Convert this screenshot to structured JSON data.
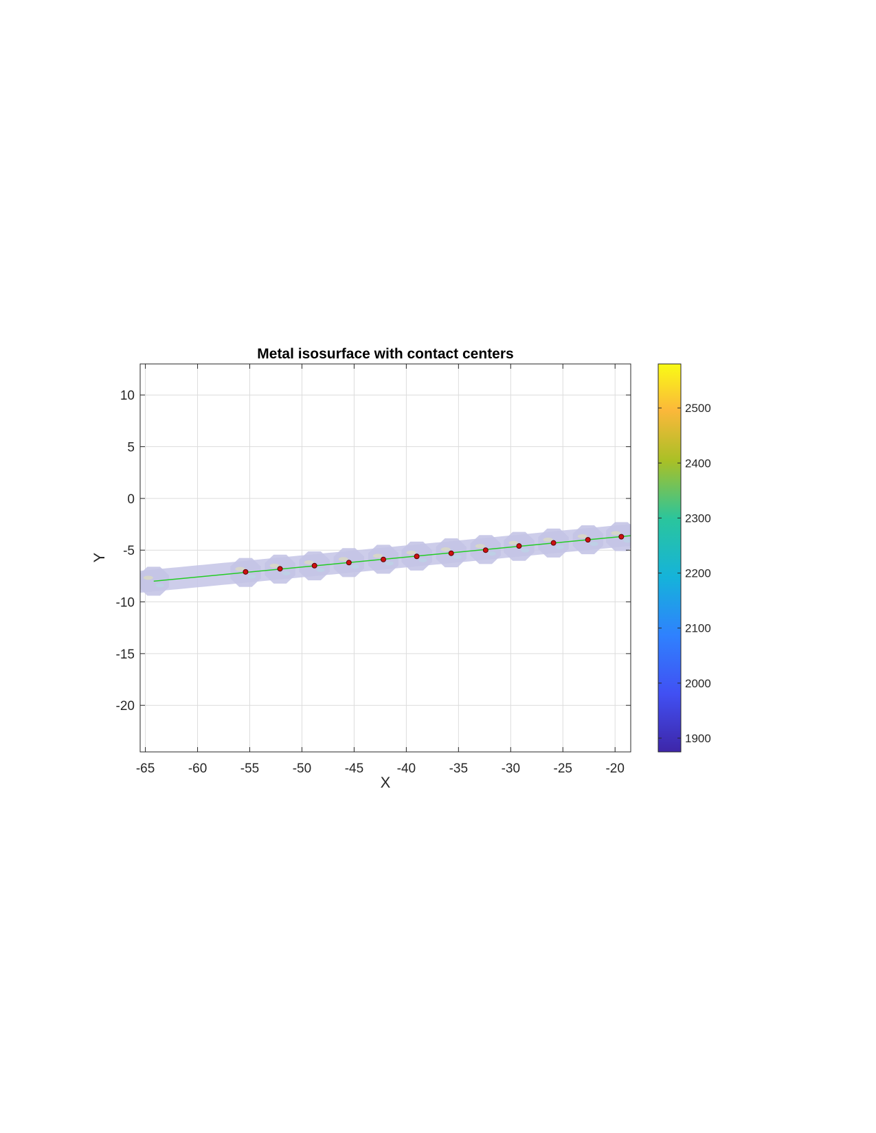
{
  "chart_data": {
    "type": "scatter",
    "title": "Metal isosurface with contact centers",
    "xlabel": "X",
    "ylabel": "Y",
    "xlim": [
      -65.5,
      -18.5
    ],
    "ylim": [
      -24.5,
      13
    ],
    "xticks": [
      -65,
      -60,
      -55,
      -50,
      -45,
      -40,
      -35,
      -30,
      -25,
      -20
    ],
    "yticks": [
      -20,
      -15,
      -10,
      -5,
      0,
      5,
      10
    ],
    "grid": true,
    "colorbar": {
      "range": [
        1875,
        2580
      ],
      "ticks": [
        1900,
        2000,
        2100,
        2200,
        2300,
        2400,
        2500
      ],
      "colormap": "parula"
    },
    "series": [
      {
        "type": "line",
        "color": "#22cc22",
        "x": [
          -64.2,
          -18.5
        ],
        "y": [
          -8.0,
          -3.6
        ]
      },
      {
        "type": "scatter",
        "color": "#cc1111",
        "x": [
          -55.4,
          -52.1,
          -48.8,
          -45.5,
          -42.2,
          -39.0,
          -35.7,
          -32.4,
          -29.2,
          -25.9,
          -22.6,
          -19.4
        ],
        "y": [
          -7.1,
          -6.8,
          -6.5,
          -6.2,
          -5.9,
          -5.6,
          -5.3,
          -5.0,
          -4.6,
          -4.3,
          -4.0,
          -3.7
        ]
      }
    ],
    "surface": {
      "color": "#c4c4e6",
      "segment_centers_x": [
        -64.2,
        -55.4,
        -52.1,
        -48.8,
        -45.5,
        -42.2,
        -39.0,
        -35.7,
        -32.4,
        -29.2,
        -25.9,
        -22.6,
        -19.4
      ]
    }
  }
}
